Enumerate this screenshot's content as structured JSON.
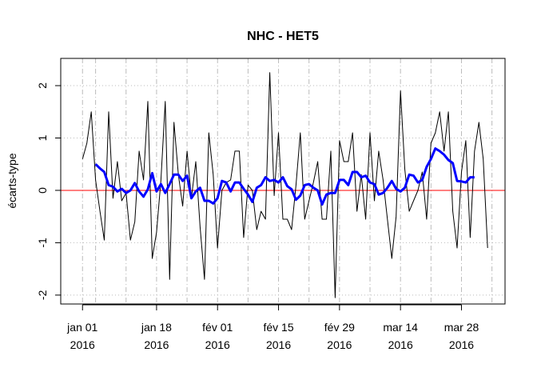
{
  "chart_data": {
    "type": "line",
    "title": "NHC - HET5",
    "ylabel": "écarts-type",
    "x": [
      "2016-01-01",
      "2016-01-02",
      "2016-01-03",
      "2016-01-04",
      "2016-01-05",
      "2016-01-06",
      "2016-01-07",
      "2016-01-08",
      "2016-01-09",
      "2016-01-10",
      "2016-01-11",
      "2016-01-12",
      "2016-01-13",
      "2016-01-14",
      "2016-01-15",
      "2016-01-16",
      "2016-01-17",
      "2016-01-18",
      "2016-01-19",
      "2016-01-20",
      "2016-01-21",
      "2016-01-22",
      "2016-01-23",
      "2016-01-24",
      "2016-01-25",
      "2016-01-26",
      "2016-01-27",
      "2016-01-28",
      "2016-01-29",
      "2016-01-30",
      "2016-01-31",
      "2016-02-01",
      "2016-02-02",
      "2016-02-03",
      "2016-02-04",
      "2016-02-05",
      "2016-02-06",
      "2016-02-07",
      "2016-02-08",
      "2016-02-09",
      "2016-02-10",
      "2016-02-11",
      "2016-02-12",
      "2016-02-13",
      "2016-02-14",
      "2016-02-15",
      "2016-02-16",
      "2016-02-17",
      "2016-02-18",
      "2016-02-19",
      "2016-02-20",
      "2016-02-21",
      "2016-02-22",
      "2016-02-23",
      "2016-02-24",
      "2016-02-25",
      "2016-02-26",
      "2016-02-27",
      "2016-02-28",
      "2016-02-29",
      "2016-03-01",
      "2016-03-02",
      "2016-03-03",
      "2016-03-04",
      "2016-03-05",
      "2016-03-06",
      "2016-03-07",
      "2016-03-08",
      "2016-03-09",
      "2016-03-10",
      "2016-03-11",
      "2016-03-12",
      "2016-03-13",
      "2016-03-14",
      "2016-03-15",
      "2016-03-16",
      "2016-03-17",
      "2016-03-18",
      "2016-03-19",
      "2016-03-20",
      "2016-03-21",
      "2016-03-22",
      "2016-03-23",
      "2016-03-24",
      "2016-03-25",
      "2016-03-26",
      "2016-03-27",
      "2016-03-28",
      "2016-03-29",
      "2016-03-30",
      "2016-03-31",
      "2016-04-01",
      "2016-04-02",
      "2016-04-03"
    ],
    "series": [
      {
        "color": "#000000",
        "width": 1,
        "values": [
          0.6,
          0.9,
          1.5,
          0.2,
          -0.4,
          -0.95,
          1.5,
          -0.15,
          0.55,
          -0.2,
          -0.05,
          -0.95,
          -0.6,
          0.75,
          0.2,
          1.7,
          -1.3,
          -0.8,
          0.2,
          1.7,
          -1.7,
          1.3,
          0.3,
          -0.3,
          0.75,
          -0.15,
          0.55,
          -0.7,
          -1.7,
          1.1,
          0.3,
          -1.1,
          0.0,
          0.15,
          0.2,
          0.75,
          0.75,
          -0.9,
          0.1,
          0.0,
          -0.75,
          -0.4,
          -0.55,
          2.25,
          -0.1,
          1.1,
          -0.55,
          -0.55,
          -0.75,
          0.1,
          1.1,
          -0.55,
          -0.2,
          0.15,
          0.55,
          -0.55,
          -0.55,
          0.75,
          -2.05,
          0.95,
          0.55,
          0.55,
          1.1,
          -0.4,
          0.3,
          -0.55,
          1.1,
          -0.2,
          0.75,
          0.2,
          -0.55,
          -1.3,
          -0.5,
          1.9,
          0.4,
          -0.4,
          -0.2,
          0.0,
          0.35,
          -0.55,
          0.9,
          1.1,
          1.5,
          0.75,
          1.5,
          -0.4,
          -1.1,
          0.35,
          0.95,
          -0.9,
          0.75,
          1.3,
          0.6,
          -1.1
        ]
      },
      {
        "color": "#0000ff",
        "width": 3,
        "values": [
          null,
          null,
          null,
          0.5,
          0.42,
          0.35,
          0.1,
          0.07,
          -0.02,
          0.03,
          -0.05,
          0.0,
          0.14,
          -0.02,
          -0.12,
          0.02,
          0.33,
          -0.02,
          0.12,
          -0.05,
          0.12,
          0.3,
          0.3,
          0.18,
          0.28,
          -0.15,
          -0.02,
          0.05,
          -0.2,
          -0.2,
          -0.25,
          -0.15,
          0.18,
          0.15,
          -0.02,
          0.15,
          0.15,
          0.03,
          -0.08,
          -0.22,
          0.05,
          0.1,
          0.25,
          0.18,
          0.2,
          0.15,
          0.25,
          0.08,
          0.02,
          -0.18,
          -0.1,
          0.1,
          0.12,
          0.05,
          0.0,
          -0.27,
          -0.08,
          -0.05,
          -0.05,
          0.2,
          0.2,
          0.1,
          0.35,
          0.35,
          0.25,
          0.28,
          0.15,
          0.12,
          -0.08,
          -0.05,
          0.05,
          0.18,
          0.03,
          -0.02,
          0.05,
          0.3,
          0.28,
          0.15,
          0.2,
          0.45,
          0.6,
          0.8,
          0.75,
          0.68,
          0.58,
          0.52,
          0.18,
          0.17,
          0.15,
          0.25,
          0.25,
          null,
          null,
          null
        ]
      }
    ],
    "hline": 0,
    "hline_color": "#ff0000",
    "xlim": [
      "2015-12-27",
      "2016-04-07"
    ],
    "ylim": [
      -2.17,
      2.52
    ],
    "xticks": [
      {
        "value": "2016-01-01",
        "label": "jan 01\n2016"
      },
      {
        "value": "2016-01-18",
        "label": "jan 18\n2016"
      },
      {
        "value": "2016-02-01",
        "label": "fév 01\n2016"
      },
      {
        "value": "2016-02-15",
        "label": "fév 15\n2016"
      },
      {
        "value": "2016-02-29",
        "label": "fév 29\n2016"
      },
      {
        "value": "2016-03-14",
        "label": "mar 14\n2016"
      },
      {
        "value": "2016-03-28",
        "label": "mar 28\n2016"
      }
    ],
    "yticks": [
      -2,
      -1,
      0,
      1,
      2
    ],
    "vgrid": [
      "2016-01-01",
      "2016-01-04",
      "2016-01-11",
      "2016-01-18",
      "2016-01-25",
      "2016-02-01",
      "2016-02-08",
      "2016-02-15",
      "2016-02-22",
      "2016-02-29",
      "2016-03-07",
      "2016-03-14",
      "2016-03-21",
      "2016-03-28",
      "2016-04-04"
    ],
    "grid": true
  }
}
